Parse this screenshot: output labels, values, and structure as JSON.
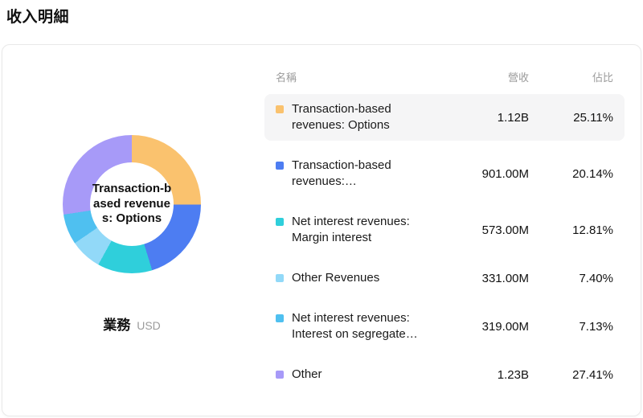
{
  "page": {
    "title": "收入明細"
  },
  "card": {
    "center_label": "Transaction-based revenues: Options",
    "footer": {
      "label": "業務",
      "unit": "USD"
    }
  },
  "table": {
    "headers": {
      "name": "名稱",
      "revenue": "營收",
      "share": "佔比"
    },
    "rows": [
      {
        "name": "Transaction-based revenues: Options",
        "revenue": "1.12B",
        "share": "25.11%",
        "color": "#fac26e"
      },
      {
        "name": "Transaction-based revenues:…",
        "revenue": "901.00M",
        "share": "20.14%",
        "color": "#4d7df2"
      },
      {
        "name": "Net interest revenues: Margin interest",
        "revenue": "573.00M",
        "share": "12.81%",
        "color": "#2fcfdb"
      },
      {
        "name": "Other Revenues",
        "revenue": "331.00M",
        "share": "7.40%",
        "color": "#92d9f8"
      },
      {
        "name": "Net interest revenues: Interest on segregate…",
        "revenue": "319.00M",
        "share": "7.13%",
        "color": "#4fc0f0"
      },
      {
        "name": "Other",
        "revenue": "1.23B",
        "share": "27.41%",
        "color": "#a79af8"
      }
    ]
  },
  "chart_data": {
    "type": "pie",
    "title": "收入明細",
    "subtype": "donut",
    "unit": "USD",
    "center_label": "Transaction-based revenues: Options",
    "legend_position": "right",
    "categories": [
      "Transaction-based revenues: Options",
      "Transaction-based revenues:…",
      "Net interest revenues: Margin interest",
      "Other Revenues",
      "Net interest revenues: Interest on segregate…",
      "Other"
    ],
    "values": [
      25.11,
      20.14,
      12.81,
      7.4,
      7.13,
      27.41
    ],
    "revenues": [
      "1.12B",
      "901.00M",
      "573.00M",
      "331.00M",
      "319.00M",
      "1.23B"
    ],
    "colors": [
      "#fac26e",
      "#4d7df2",
      "#2fcfdb",
      "#92d9f8",
      "#4fc0f0",
      "#a79af8"
    ]
  }
}
